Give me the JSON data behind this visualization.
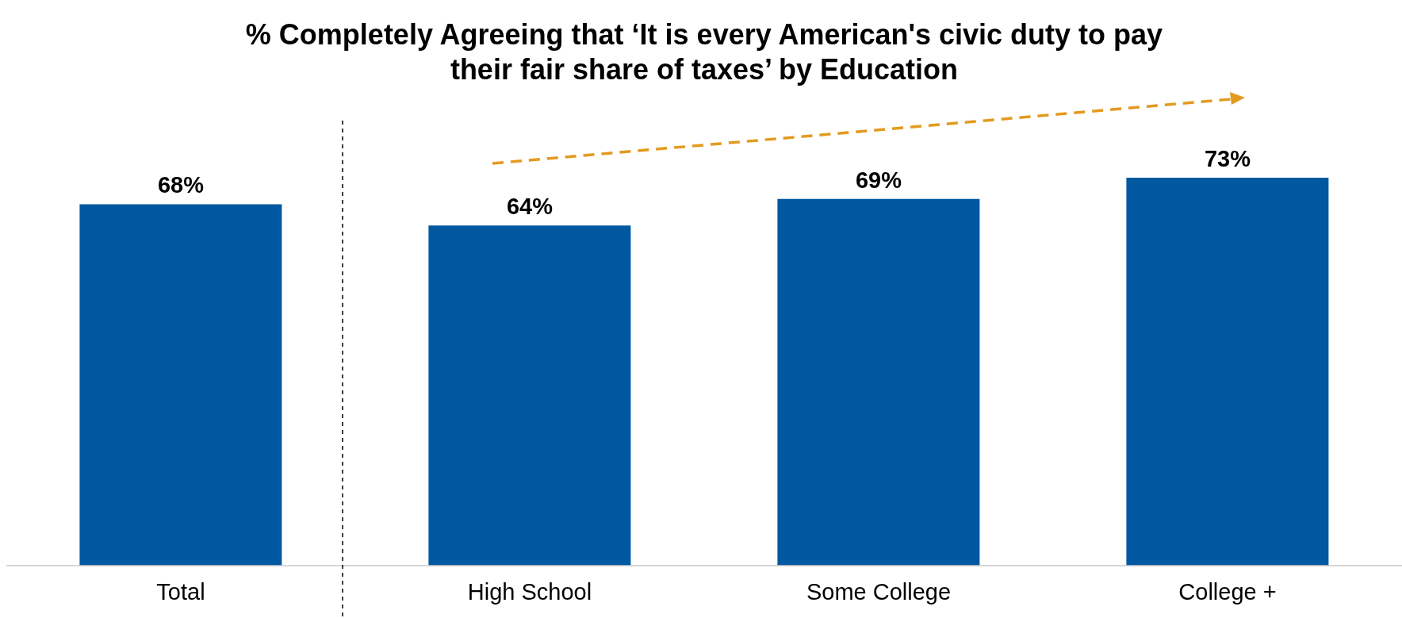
{
  "chart_data": {
    "type": "bar",
    "title": "% Completely Agreeing that ‘It is every American's civic duty to pay their fair share of taxes’ by Education",
    "categories": [
      "Total",
      "High School",
      "Some College",
      "College +"
    ],
    "values": [
      68,
      64,
      69,
      73
    ],
    "value_labels": [
      "68%",
      "64%",
      "69%",
      "73%"
    ],
    "color": "#0058a0"
  }
}
